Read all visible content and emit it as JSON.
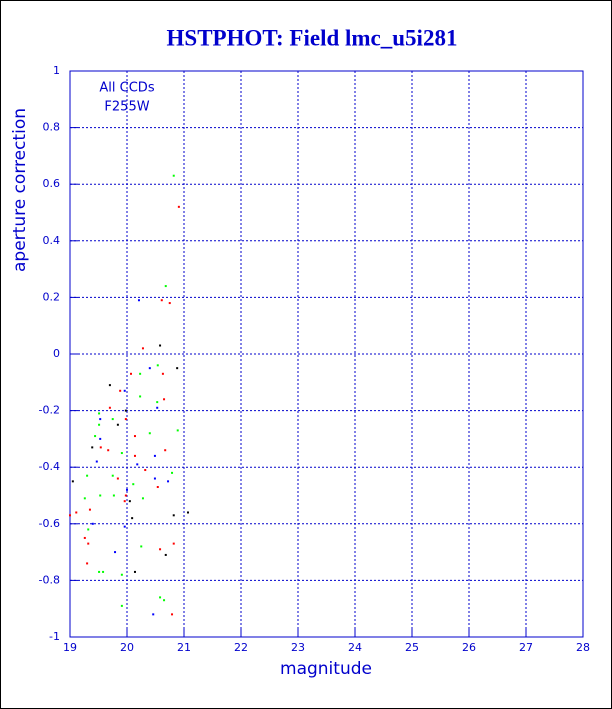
{
  "chart_data": {
    "type": "scatter",
    "title": "HSTPHOT: Field lmc_u5i281",
    "x_label": "magnitude",
    "y_label": "aperture correction",
    "annotations": [
      "All CCDs",
      "F255W"
    ],
    "xlim": [
      19,
      28
    ],
    "ylim": [
      -1,
      1
    ],
    "xticks": [
      19,
      20,
      21,
      22,
      23,
      24,
      25,
      26,
      27,
      28
    ],
    "yticks": [
      -1,
      -0.8,
      -0.6,
      -0.4,
      -0.2,
      0,
      0.2,
      0.4,
      0.6,
      0.8,
      1
    ],
    "grid": true,
    "series": [
      {
        "color": "#000000",
        "x": [
          20.58,
          20.88,
          19.7,
          19.98,
          19.84,
          19.39,
          19.05,
          20.05,
          21.07,
          20.82,
          20.09,
          20.68,
          20.14
        ],
        "values": [
          0.03,
          -0.05,
          -0.11,
          -0.2,
          -0.25,
          -0.33,
          -0.45,
          -0.52,
          -0.56,
          -0.57,
          -0.58,
          -0.71,
          -0.77
        ]
      },
      {
        "color": "#ff0000",
        "x": [
          20.91,
          20.61,
          20.75,
          20.28,
          20.63,
          20.07,
          19.88,
          20.65,
          19.7,
          19.98,
          20.14,
          19.54,
          19.67,
          20.67,
          20.14,
          20.32,
          19.84,
          20.54,
          19.98,
          19.96,
          19.35,
          19.11,
          19.0,
          19.26,
          19.32,
          20.58,
          20.82,
          19.3,
          20.79
        ],
        "values": [
          0.52,
          0.19,
          0.18,
          0.02,
          -0.07,
          -0.07,
          -0.13,
          -0.16,
          -0.19,
          -0.23,
          -0.29,
          -0.33,
          -0.34,
          -0.34,
          -0.36,
          -0.41,
          -0.44,
          -0.47,
          -0.5,
          -0.52,
          -0.55,
          -0.56,
          -0.57,
          -0.65,
          -0.67,
          -0.69,
          -0.67,
          -0.74,
          -0.92
        ]
      },
      {
        "color": "#00ff00",
        "x": [
          20.82,
          20.68,
          20.54,
          20.23,
          20.23,
          20.53,
          19.51,
          19.75,
          19.51,
          20.89,
          20.4,
          19.44,
          19.91,
          20.79,
          19.3,
          19.75,
          20.11,
          19.53,
          19.77,
          20.28,
          19.26,
          19.32,
          20.25,
          19.51,
          19.58,
          19.91,
          20.58,
          20.65,
          19.91
        ],
        "values": [
          0.63,
          0.24,
          -0.04,
          -0.07,
          -0.15,
          -0.17,
          -0.21,
          -0.23,
          -0.25,
          -0.27,
          -0.28,
          -0.29,
          -0.35,
          -0.42,
          -0.43,
          -0.43,
          -0.46,
          -0.5,
          -0.5,
          -0.51,
          -0.51,
          -0.62,
          -0.68,
          -0.77,
          -0.77,
          -0.78,
          -0.86,
          -0.87,
          -0.89
        ]
      },
      {
        "color": "#0000ff",
        "x": [
          20.21,
          20.4,
          19.96,
          20.53,
          19.53,
          19.53,
          20.49,
          19.47,
          20.18,
          20.49,
          20.72,
          20.0,
          19.4,
          19.96,
          19.79,
          20.46
        ],
        "values": [
          0.19,
          -0.05,
          -0.13,
          -0.19,
          -0.23,
          -0.3,
          -0.36,
          -0.38,
          -0.39,
          -0.44,
          -0.45,
          -0.48,
          -0.6,
          -0.61,
          -0.7,
          -0.92
        ]
      }
    ]
  }
}
